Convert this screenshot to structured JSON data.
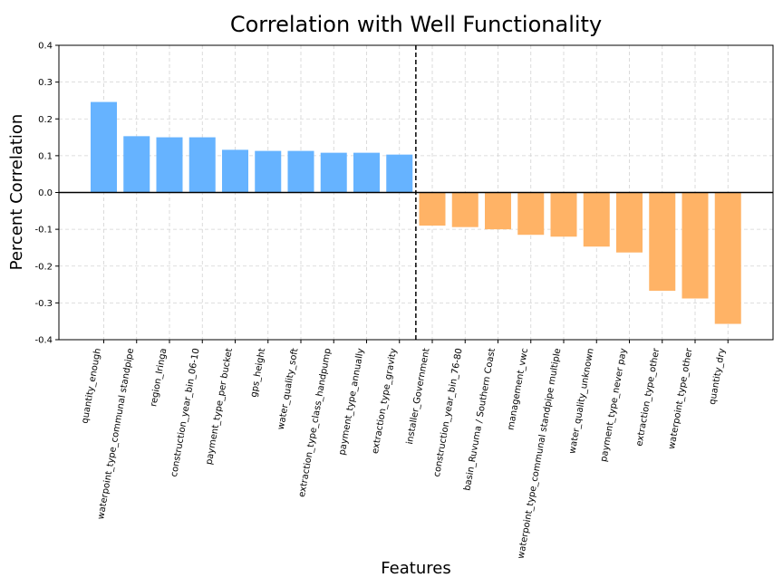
{
  "chart_data": {
    "type": "bar",
    "title": "Correlation with Well Functionality",
    "xlabel": "Features",
    "ylabel": "Percent Correlation",
    "ylim": [
      -0.4,
      0.4
    ],
    "yticks": [
      "0.4",
      "0.3",
      "0.2",
      "0.1",
      "0.0",
      "-0.1",
      "-0.2",
      "-0.3",
      "-0.4"
    ],
    "ytick_values": [
      0.4,
      0.3,
      0.2,
      0.1,
      0.0,
      -0.1,
      -0.2,
      -0.3,
      -0.4
    ],
    "grid": true,
    "colors": {
      "positive": "#66b3ff",
      "negative": "#ffb366"
    },
    "categories": [
      "quantity_enough",
      "waterpoint_type_communal standpipe",
      "region_Iringa",
      "construction_year_bin_06-10",
      "payment_type_per bucket",
      "gps_height",
      "water_quality_soft",
      "extraction_type_class_handpump",
      "payment_type_annually",
      "extraction_type_gravity",
      "installer_Government",
      "construction_year_bin_76-80",
      "basin_Ruvuma / Southern Coast",
      "management_vwc",
      "waterpoint_type_communal standpipe multiple",
      "water_quality_unknown",
      "payment_type_never pay",
      "extraction_type_other",
      "waterpoint_type_other",
      "quantity_dry"
    ],
    "values": [
      0.246,
      0.153,
      0.15,
      0.15,
      0.116,
      0.113,
      0.113,
      0.108,
      0.108,
      0.103,
      -0.09,
      -0.094,
      -0.1,
      -0.115,
      -0.12,
      -0.147,
      -0.163,
      -0.267,
      -0.288,
      -0.357
    ]
  }
}
